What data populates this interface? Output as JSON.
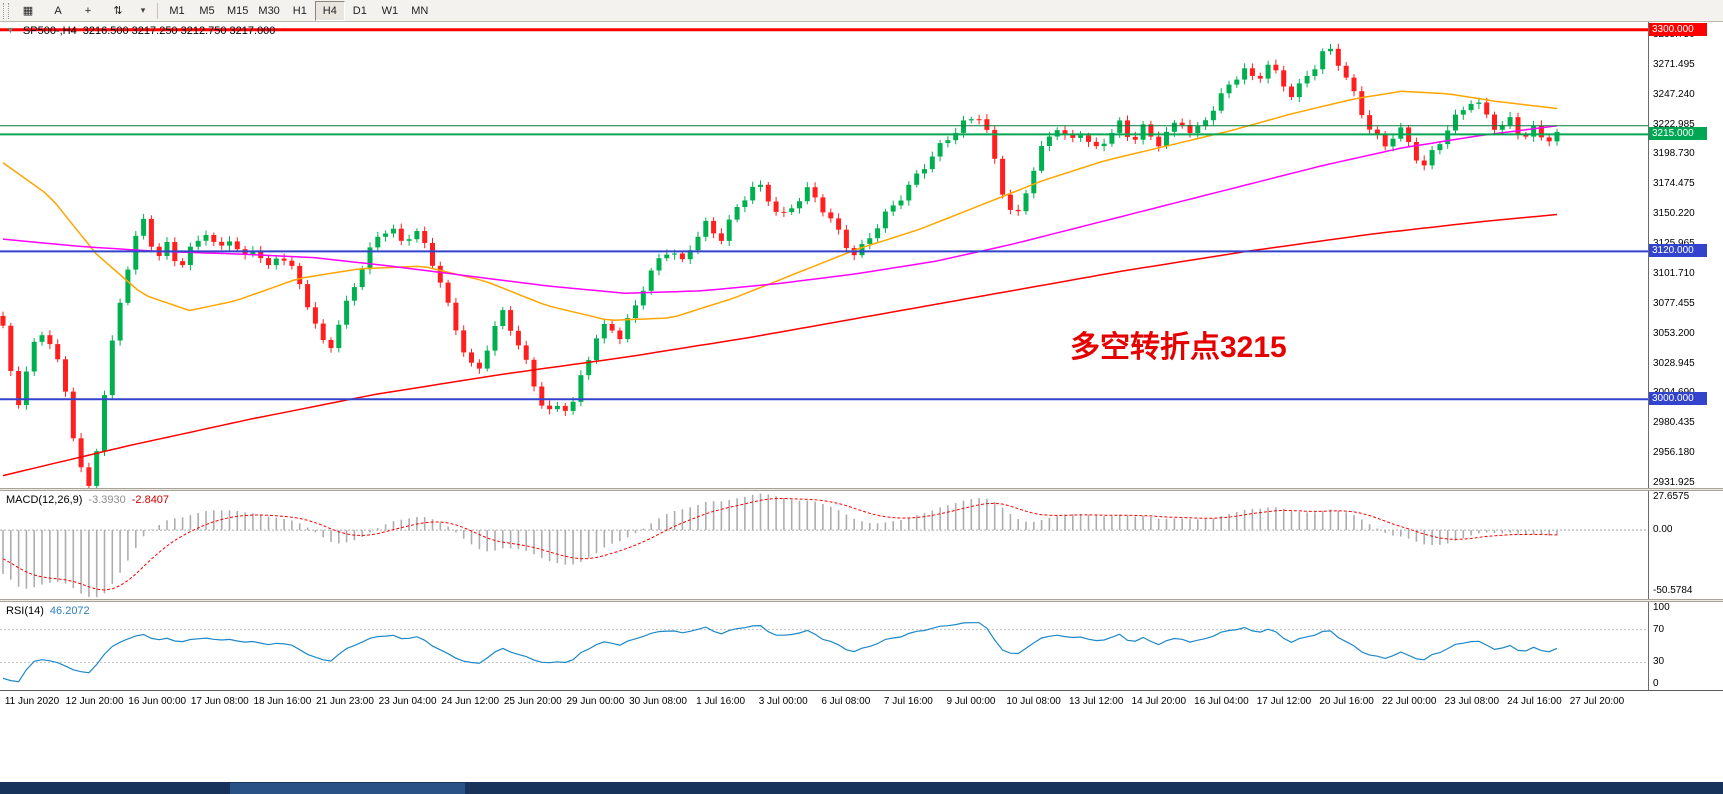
{
  "toolbar": {
    "left_buttons": [
      {
        "name": "chart-grid-icon",
        "glyph": "▦"
      },
      {
        "name": "cursor-a-tool",
        "glyph": "A"
      },
      {
        "name": "crosshair-tool",
        "glyph": "+"
      },
      {
        "name": "scroll-shift-tool",
        "glyph": "⇅"
      },
      {
        "name": "tool-dropdown-caret",
        "glyph": "▾"
      }
    ],
    "timeframes": [
      "M1",
      "M5",
      "M15",
      "M30",
      "H1",
      "H4",
      "D1",
      "W1",
      "MN"
    ],
    "active_timeframe": "H4"
  },
  "chart": {
    "header": {
      "collapse_glyph": "▼",
      "symbol": "SP500-,H4",
      "ohlc": "3216.500 3217.250 3212.750 3217.000"
    },
    "annotation": {
      "text": "多空转折点3215",
      "color": "#E60000"
    },
    "price_axis_labels": [
      "3295.750",
      "3271.495",
      "3247.240",
      "3222.985",
      "3198.730",
      "3174.475",
      "3150.220",
      "3125.965",
      "3101.710",
      "3077.455",
      "3053.200",
      "3028.945",
      "3004.690",
      "2980.435",
      "2956.180",
      "2931.925"
    ],
    "levels": [
      {
        "price": 3300.0,
        "tag": "3300.000",
        "color": "#FF0000",
        "width": 3
      },
      {
        "price": 3222.0,
        "tag": "",
        "color": "#007A3D",
        "width": 1
      },
      {
        "price": 3215.0,
        "tag": "3215.000",
        "color": "#00A651",
        "width": 2
      },
      {
        "price": 3120.0,
        "tag": "3120.000",
        "color": "#3344CC",
        "width": 2
      },
      {
        "price": 3000.0,
        "tag": "3000.000",
        "color": "#3344CC",
        "width": 2
      }
    ]
  },
  "chart_data": {
    "type": "candlestick",
    "symbol": "SP500-",
    "timeframe": "H4",
    "current": {
      "open": 3216.5,
      "high": 3217.25,
      "low": 3212.75,
      "close": 3217.0
    },
    "ylim": [
      2927.9,
      3306.3
    ],
    "bars": 200,
    "up_color": "#00B050",
    "down_color": "#FF1F1F",
    "close_path_anchors": [
      [
        0.0,
        3058
      ],
      [
        0.005,
        3018
      ],
      [
        0.01,
        2995
      ],
      [
        0.016,
        3028
      ],
      [
        0.022,
        3050
      ],
      [
        0.028,
        3055
      ],
      [
        0.034,
        3038
      ],
      [
        0.04,
        3008
      ],
      [
        0.046,
        2968
      ],
      [
        0.052,
        2936
      ],
      [
        0.056,
        2925
      ],
      [
        0.061,
        2965
      ],
      [
        0.067,
        3018
      ],
      [
        0.073,
        3062
      ],
      [
        0.079,
        3100
      ],
      [
        0.086,
        3132
      ],
      [
        0.092,
        3150
      ],
      [
        0.098,
        3112
      ],
      [
        0.106,
        3128
      ],
      [
        0.114,
        3108
      ],
      [
        0.122,
        3124
      ],
      [
        0.13,
        3136
      ],
      [
        0.138,
        3118
      ],
      [
        0.146,
        3130
      ],
      [
        0.154,
        3112
      ],
      [
        0.162,
        3126
      ],
      [
        0.17,
        3106
      ],
      [
        0.178,
        3122
      ],
      [
        0.186,
        3106
      ],
      [
        0.193,
        3088
      ],
      [
        0.201,
        3058
      ],
      [
        0.209,
        3036
      ],
      [
        0.217,
        3062
      ],
      [
        0.225,
        3090
      ],
      [
        0.233,
        3114
      ],
      [
        0.241,
        3134
      ],
      [
        0.249,
        3142
      ],
      [
        0.257,
        3126
      ],
      [
        0.265,
        3138
      ],
      [
        0.273,
        3118
      ],
      [
        0.281,
        3096
      ],
      [
        0.289,
        3064
      ],
      [
        0.297,
        3040
      ],
      [
        0.305,
        3020
      ],
      [
        0.313,
        3050
      ],
      [
        0.321,
        3072
      ],
      [
        0.329,
        3052
      ],
      [
        0.337,
        3026
      ],
      [
        0.345,
        2998
      ],
      [
        0.353,
        2986
      ],
      [
        0.359,
        2998
      ],
      [
        0.365,
        2990
      ],
      [
        0.373,
        3024
      ],
      [
        0.381,
        3050
      ],
      [
        0.389,
        3062
      ],
      [
        0.397,
        3050
      ],
      [
        0.405,
        3068
      ],
      [
        0.413,
        3092
      ],
      [
        0.421,
        3110
      ],
      [
        0.429,
        3124
      ],
      [
        0.437,
        3112
      ],
      [
        0.445,
        3132
      ],
      [
        0.453,
        3144
      ],
      [
        0.461,
        3128
      ],
      [
        0.469,
        3146
      ],
      [
        0.477,
        3162
      ],
      [
        0.485,
        3174
      ],
      [
        0.493,
        3162
      ],
      [
        0.501,
        3148
      ],
      [
        0.509,
        3160
      ],
      [
        0.517,
        3172
      ],
      [
        0.525,
        3160
      ],
      [
        0.533,
        3144
      ],
      [
        0.541,
        3126
      ],
      [
        0.549,
        3114
      ],
      [
        0.557,
        3130
      ],
      [
        0.566,
        3148
      ],
      [
        0.575,
        3162
      ],
      [
        0.584,
        3176
      ],
      [
        0.593,
        3190
      ],
      [
        0.602,
        3202
      ],
      [
        0.611,
        3214
      ],
      [
        0.62,
        3224
      ],
      [
        0.63,
        3232
      ],
      [
        0.638,
        3196
      ],
      [
        0.646,
        3158
      ],
      [
        0.653,
        3150
      ],
      [
        0.661,
        3180
      ],
      [
        0.67,
        3206
      ],
      [
        0.678,
        3220
      ],
      [
        0.686,
        3206
      ],
      [
        0.694,
        3218
      ],
      [
        0.702,
        3202
      ],
      [
        0.71,
        3214
      ],
      [
        0.718,
        3226
      ],
      [
        0.726,
        3210
      ],
      [
        0.734,
        3220
      ],
      [
        0.742,
        3204
      ],
      [
        0.75,
        3216
      ],
      [
        0.758,
        3226
      ],
      [
        0.766,
        3214
      ],
      [
        0.774,
        3230
      ],
      [
        0.782,
        3244
      ],
      [
        0.79,
        3258
      ],
      [
        0.798,
        3268
      ],
      [
        0.806,
        3256
      ],
      [
        0.814,
        3270
      ],
      [
        0.822,
        3258
      ],
      [
        0.83,
        3246
      ],
      [
        0.838,
        3262
      ],
      [
        0.846,
        3276
      ],
      [
        0.852,
        3288
      ],
      [
        0.858,
        3278
      ],
      [
        0.866,
        3256
      ],
      [
        0.874,
        3232
      ],
      [
        0.882,
        3212
      ],
      [
        0.89,
        3204
      ],
      [
        0.898,
        3222
      ],
      [
        0.906,
        3206
      ],
      [
        0.914,
        3190
      ],
      [
        0.922,
        3206
      ],
      [
        0.93,
        3220
      ],
      [
        0.938,
        3232
      ],
      [
        0.946,
        3242
      ],
      [
        0.954,
        3230
      ],
      [
        0.962,
        3218
      ],
      [
        0.97,
        3228
      ],
      [
        0.978,
        3214
      ],
      [
        0.986,
        3222
      ],
      [
        0.993,
        3210
      ],
      [
        1.0,
        3217
      ]
    ],
    "prehistory_anchors": [
      [
        0,
        3150
      ],
      [
        0.35,
        3232
      ],
      [
        0.6,
        3225
      ],
      [
        0.85,
        3130
      ],
      [
        1,
        3068
      ]
    ],
    "moving_averages": [
      {
        "name": "fast-ma",
        "color": "#FFA500",
        "points": [
          [
            0,
            3192
          ],
          [
            0.03,
            3165
          ],
          [
            0.06,
            3118
          ],
          [
            0.09,
            3085
          ],
          [
            0.12,
            3072
          ],
          [
            0.15,
            3080
          ],
          [
            0.19,
            3098
          ],
          [
            0.23,
            3106
          ],
          [
            0.27,
            3108
          ],
          [
            0.31,
            3096
          ],
          [
            0.35,
            3076
          ],
          [
            0.39,
            3064
          ],
          [
            0.43,
            3066
          ],
          [
            0.47,
            3082
          ],
          [
            0.51,
            3102
          ],
          [
            0.55,
            3122
          ],
          [
            0.59,
            3138
          ],
          [
            0.63,
            3158
          ],
          [
            0.67,
            3178
          ],
          [
            0.71,
            3194
          ],
          [
            0.75,
            3206
          ],
          [
            0.79,
            3218
          ],
          [
            0.83,
            3232
          ],
          [
            0.87,
            3244
          ],
          [
            0.9,
            3250
          ],
          [
            0.93,
            3248
          ],
          [
            0.96,
            3242
          ],
          [
            1,
            3236
          ]
        ]
      },
      {
        "name": "mid-ma",
        "color": "#FF00FF",
        "points": [
          [
            0,
            3130
          ],
          [
            0.05,
            3124
          ],
          [
            0.1,
            3120
          ],
          [
            0.15,
            3118
          ],
          [
            0.2,
            3115
          ],
          [
            0.25,
            3108
          ],
          [
            0.3,
            3100
          ],
          [
            0.35,
            3092
          ],
          [
            0.4,
            3086
          ],
          [
            0.45,
            3088
          ],
          [
            0.5,
            3094
          ],
          [
            0.55,
            3102
          ],
          [
            0.6,
            3112
          ],
          [
            0.65,
            3126
          ],
          [
            0.7,
            3142
          ],
          [
            0.75,
            3158
          ],
          [
            0.8,
            3174
          ],
          [
            0.85,
            3190
          ],
          [
            0.9,
            3204
          ],
          [
            0.95,
            3214
          ],
          [
            1,
            3222
          ]
        ]
      },
      {
        "name": "slow-ma",
        "color": "#FF0000",
        "points": [
          [
            0,
            2938
          ],
          [
            0.08,
            2962
          ],
          [
            0.16,
            2984
          ],
          [
            0.24,
            3004
          ],
          [
            0.32,
            3020
          ],
          [
            0.4,
            3034
          ],
          [
            0.48,
            3050
          ],
          [
            0.56,
            3068
          ],
          [
            0.64,
            3086
          ],
          [
            0.72,
            3104
          ],
          [
            0.8,
            3120
          ],
          [
            0.88,
            3134
          ],
          [
            0.95,
            3144
          ],
          [
            1,
            3150
          ]
        ]
      }
    ]
  },
  "macd": {
    "label": "MACD(12,26,9)",
    "value_main": "-3.3930",
    "value_signal": "-2.8407",
    "params": {
      "fast": 12,
      "slow": 26,
      "signal": 9
    },
    "axis_labels": [
      "27.6575",
      "0.00",
      "-50.5784"
    ],
    "range": [
      -50.5784,
      27.6575
    ],
    "histogram_color": "#ADADAD",
    "signal_color": "#FF0000"
  },
  "rsi": {
    "label": "RSI(14)",
    "value": "46.2072",
    "period": 14,
    "axis_labels": [
      "100",
      "70",
      "30",
      "0"
    ],
    "range": [
      0,
      100
    ],
    "levels": [
      70,
      30
    ],
    "line_color": "#1E88C7"
  },
  "time_axis": {
    "labels": [
      "11 Jun 2020",
      "12 Jun 20:00",
      "16 Jun 00:00",
      "17 Jun 08:00",
      "18 Jun 16:00",
      "21 Jun 23:00",
      "23 Jun 04:00",
      "24 Jun 12:00",
      "25 Jun 20:00",
      "29 Jun 00:00",
      "30 Jun 08:00",
      "1 Jul 16:00",
      "3 Jul 00:00",
      "6 Jul 08:00",
      "7 Jul 16:00",
      "9 Jul 00:00",
      "10 Jul 08:00",
      "13 Jul 12:00",
      "14 Jul 20:00",
      "16 Jul 04:00",
      "17 Jul 12:00",
      "20 Jul 16:00",
      "22 Jul 00:00",
      "23 Jul 08:00",
      "24 Jul 16:00",
      "27 Jul 20:00"
    ]
  }
}
